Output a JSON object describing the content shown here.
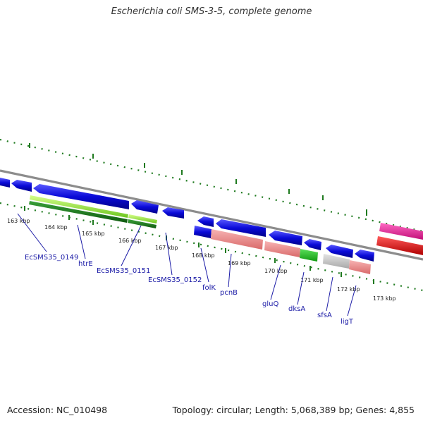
{
  "title": "Escherichia coli SMS-3-5, complete genome",
  "footer": {
    "accession": "Accession: NC_010498",
    "summary": "Topology: circular; Length: 5,068,389 bp; Genes: 4,855"
  },
  "ticks": [
    "163 kbp",
    "164 kbp",
    "165 kbp",
    "166 kbp",
    "167 kbp",
    "168 kbp",
    "169 kbp",
    "170 kbp",
    "171 kbp",
    "172 kbp",
    "173 kbp"
  ],
  "genes": [
    "EcSMS35_0149",
    "htrE",
    "EcSMS35_0151",
    "EcSMS35_0152",
    "folK",
    "pcnB",
    "gluQ",
    "dksA",
    "sfsA",
    "ligT"
  ],
  "colors": {
    "cds": "#0a0ad8",
    "dark_green": "#1f7a1f",
    "light_green": "#8ee03a",
    "salmon": "#ef8c8c",
    "gray": "#c8c8c8",
    "magenta": "#ee1a9a",
    "red": "#ee0000",
    "backbone": "#8c8c8c"
  }
}
